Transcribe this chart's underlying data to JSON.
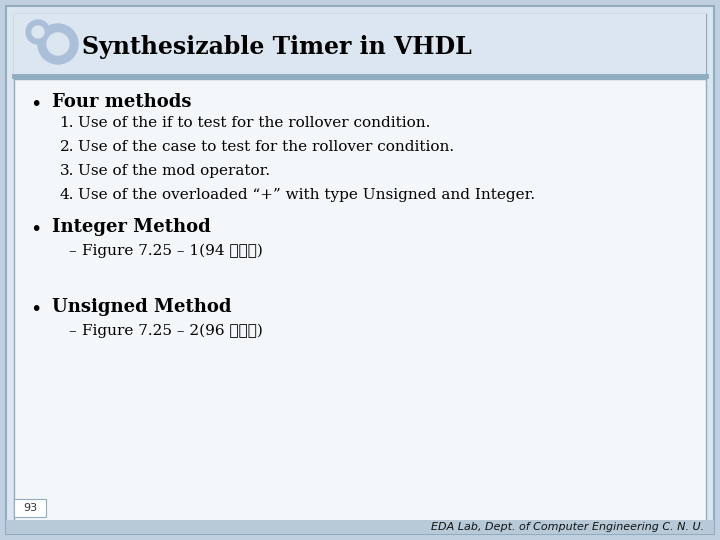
{
  "title": "Synthesizable Timer in VHDL",
  "outer_bg": "#c0d0e0",
  "slide_bg": "#dce6f0",
  "content_bg": "#f0f4f8",
  "border_color": "#8facc0",
  "separator_color": "#8facc0",
  "title_color": "#000000",
  "icon_color": "#aabfd8",
  "bullet1_bold": "Four methods",
  "numbered_items": [
    "Use of the if to test for the rollover condition.",
    "Use of the case to test for the rollover condition.",
    "Use of the mod operator.",
    "Use of the overloaded “+” with type Unsigned and Integer."
  ],
  "bullet2_bold": "Integer Method",
  "bullet2_sub": "Figure 7.25 – 1(94 페이지)",
  "bullet3_bold": "Unsigned Method",
  "bullet3_sub": "Figure 7.25 – 2(96 페이지)",
  "footer_text": "EDA Lab, Dept. of Computer Engineering C. N. U.",
  "page_num": "93",
  "title_fontsize": 17,
  "bullet_fontsize": 13,
  "item_fontsize": 11,
  "footer_fontsize": 8
}
